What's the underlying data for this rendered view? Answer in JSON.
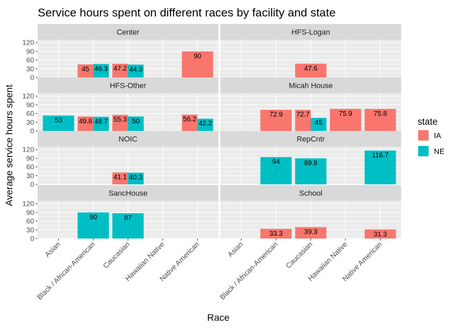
{
  "chart_data": {
    "type": "bar",
    "title": "Service hours spent on different races by facility and state",
    "xlabel": "Race",
    "ylabel": "Average service hours spent",
    "categories": [
      "Asian",
      "Black / African-American",
      "Caucasian",
      "Hawaiian Native",
      "Native American"
    ],
    "yticks": [
      0,
      30,
      60,
      90,
      120
    ],
    "ylim": [
      0,
      130
    ],
    "grid": true,
    "legend": {
      "title": "state",
      "placement": "right",
      "items": [
        {
          "name": "IA",
          "color": "#F8766D"
        },
        {
          "name": "NE",
          "color": "#00BFC4"
        }
      ]
    },
    "facets": [
      {
        "name": "Center",
        "bars": [
          {
            "category": "Black / African-American",
            "state": "IA",
            "value": 45,
            "label": "45"
          },
          {
            "category": "Black / African-American",
            "state": "NE",
            "value": 46.3,
            "label": "46.3"
          },
          {
            "category": "Caucasian",
            "state": "IA",
            "value": 47.2,
            "label": "47.2"
          },
          {
            "category": "Caucasian",
            "state": "NE",
            "value": 44.3,
            "label": "44.3"
          },
          {
            "category": "Native American",
            "state": "IA",
            "value": 90,
            "label": "90"
          }
        ]
      },
      {
        "name": "HFS-Logan",
        "bars": [
          {
            "category": "Caucasian",
            "state": "IA",
            "value": 47.6,
            "label": "47.6"
          }
        ]
      },
      {
        "name": "HFS-Other",
        "bars": [
          {
            "category": "Asian",
            "state": "NE",
            "value": 53,
            "label": "53"
          },
          {
            "category": "Black / African-American",
            "state": "IA",
            "value": 49.8,
            "label": "49.8"
          },
          {
            "category": "Black / African-American",
            "state": "NE",
            "value": 48.7,
            "label": "48.7"
          },
          {
            "category": "Caucasian",
            "state": "IA",
            "value": 55.3,
            "label": "55.3"
          },
          {
            "category": "Caucasian",
            "state": "NE",
            "value": 50,
            "label": "50"
          },
          {
            "category": "Native American",
            "state": "IA",
            "value": 56.2,
            "label": "56.2"
          },
          {
            "category": "Native American",
            "state": "NE",
            "value": 42.2,
            "label": "42.2"
          }
        ]
      },
      {
        "name": "Micah House",
        "bars": [
          {
            "category": "Black / African-American",
            "state": "IA",
            "value": 72.9,
            "label": "72.9"
          },
          {
            "category": "Caucasian",
            "state": "IA",
            "value": 72.7,
            "label": "72.7"
          },
          {
            "category": "Caucasian",
            "state": "NE",
            "value": 45,
            "label": "45"
          },
          {
            "category": "Hawaiian Native",
            "state": "IA",
            "value": 75.9,
            "label": "75.9"
          },
          {
            "category": "Native American",
            "state": "IA",
            "value": 75.8,
            "label": "75.8"
          }
        ]
      },
      {
        "name": "NOIC",
        "bars": [
          {
            "category": "Caucasian",
            "state": "IA",
            "value": 41.1,
            "label": "41.1"
          },
          {
            "category": "Caucasian",
            "state": "NE",
            "value": 40.3,
            "label": "40.3"
          }
        ]
      },
      {
        "name": "RepCntr",
        "bars": [
          {
            "category": "Black / African-American",
            "state": "NE",
            "value": 94,
            "label": "94"
          },
          {
            "category": "Caucasian",
            "state": "NE",
            "value": 89.8,
            "label": "89.8"
          },
          {
            "category": "Native American",
            "state": "NE",
            "value": 116.7,
            "label": "116.7"
          }
        ]
      },
      {
        "name": "SancHouse",
        "bars": [
          {
            "category": "Black / African-American",
            "state": "NE",
            "value": 90,
            "label": "90"
          },
          {
            "category": "Caucasian",
            "state": "NE",
            "value": 87,
            "label": "87"
          }
        ]
      },
      {
        "name": "School",
        "bars": [
          {
            "category": "Black / African-American",
            "state": "IA",
            "value": 33.3,
            "label": "33.3"
          },
          {
            "category": "Caucasian",
            "state": "IA",
            "value": 39.3,
            "label": "39.3"
          },
          {
            "category": "Native American",
            "state": "IA",
            "value": 31.3,
            "label": "31.3"
          }
        ]
      }
    ]
  }
}
